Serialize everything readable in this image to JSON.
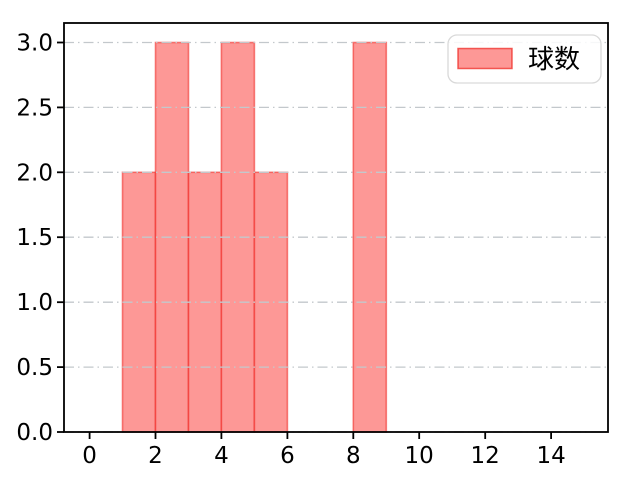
{
  "figure": {
    "background": "#ffffff"
  },
  "chart_data": {
    "type": "bar",
    "subtype": "histogram",
    "title": "",
    "xlabel": "",
    "ylabel": "",
    "series": [
      {
        "name": "球数",
        "bins": [
          [
            1,
            2
          ],
          [
            2,
            3
          ],
          [
            3,
            4
          ],
          [
            4,
            5
          ],
          [
            5,
            6
          ],
          [
            8,
            9
          ]
        ],
        "values": [
          2,
          3,
          2,
          3,
          2,
          3
        ],
        "fill_color": "#fd9896",
        "edge_color": "#ee211b"
      }
    ],
    "xlim": [
      -0.775,
      15.725
    ],
    "ylim": [
      0,
      3.15
    ],
    "xticks": [
      {
        "value": 0,
        "label": "0"
      },
      {
        "value": 2,
        "label": "2"
      },
      {
        "value": 4,
        "label": "4"
      },
      {
        "value": 6,
        "label": "6"
      },
      {
        "value": 8,
        "label": "8"
      },
      {
        "value": 10,
        "label": "10"
      },
      {
        "value": 12,
        "label": "12"
      },
      {
        "value": 14,
        "label": "14"
      }
    ],
    "yticks": [
      {
        "value": 0,
        "label": "0.0"
      },
      {
        "value": 0.5,
        "label": "0.5"
      },
      {
        "value": 1,
        "label": "1.0"
      },
      {
        "value": 1.5,
        "label": "1.5"
      },
      {
        "value": 2,
        "label": "2.0"
      },
      {
        "value": 2.5,
        "label": "2.5"
      },
      {
        "value": 3,
        "label": "3.0"
      }
    ],
    "grid": {
      "axis": "y",
      "style": "dash-dot",
      "color": "#c3c8cc",
      "drawn_on_top": true
    },
    "legend": {
      "position": "upper-right",
      "border_color": "#d9d9d9",
      "entries": [
        {
          "label": "球数",
          "swatch_fill": "#fd9896",
          "swatch_edge": "#ee211b"
        }
      ]
    },
    "spine_color": "#000000"
  }
}
